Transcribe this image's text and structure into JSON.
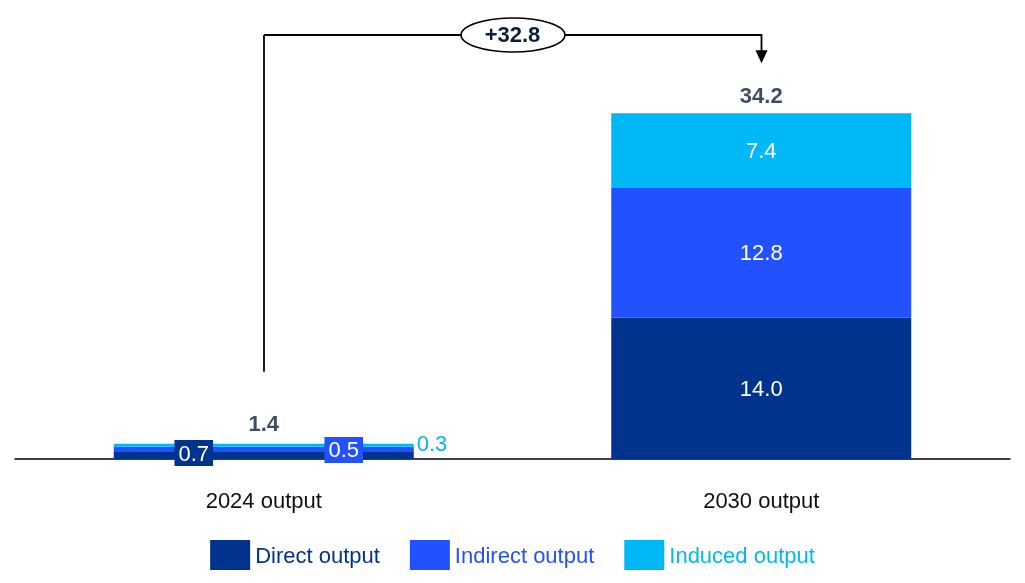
{
  "chart_data": {
    "type": "bar",
    "stacked": true,
    "categories": [
      "2024 output",
      "2030 output"
    ],
    "series": [
      {
        "name": "Direct output",
        "color": "#00338d",
        "values": [
          0.7,
          14.0
        ],
        "value_labels": [
          "0.7",
          "14.0"
        ]
      },
      {
        "name": "Indirect output",
        "color": "#2251ff",
        "values": [
          0.5,
          12.8
        ],
        "value_labels": [
          "0.5",
          "12.8"
        ]
      },
      {
        "name": "Induced output",
        "color": "#00b8f5",
        "values": [
          0.3,
          7.4
        ],
        "value_labels": [
          "0.3",
          "7.4"
        ]
      }
    ],
    "totals": [
      "1.4",
      "34.2"
    ],
    "annotations": [
      "+32.8"
    ],
    "legend": "bottom",
    "tick_labels": "x"
  }
}
